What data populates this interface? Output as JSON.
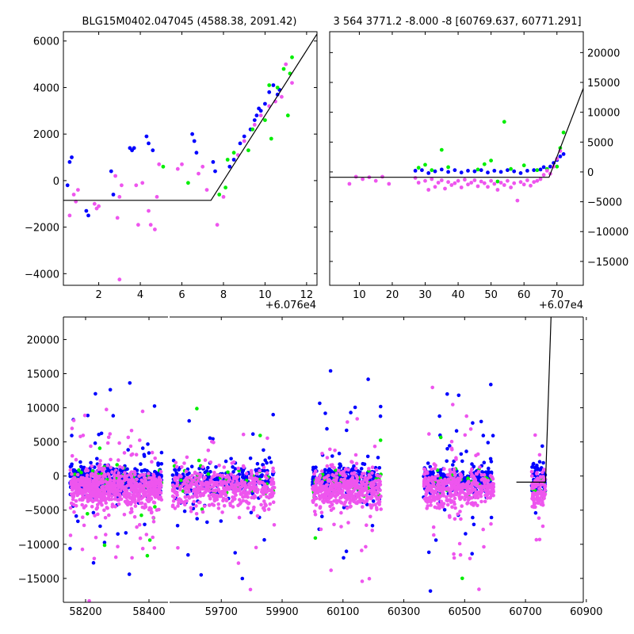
{
  "chart_data": [
    {
      "id": "zoom-left",
      "type": "scatter",
      "title": "BLG15M0402.047045 (4588.38, 2091.42)",
      "xlim": [
        0.3,
        12.5
      ],
      "ylim": [
        -4500,
        6400
      ],
      "x_offset_label": "+6.076e4",
      "xticks": [
        2,
        4,
        6,
        8,
        10,
        12
      ],
      "yticks": [
        -4000,
        -2000,
        0,
        2000,
        4000,
        6000
      ],
      "ytick_side": "left",
      "model": [
        [
          0.3,
          -850
        ],
        [
          7.4,
          -850
        ],
        [
          12.5,
          6300
        ]
      ],
      "series": [
        {
          "color": "#0000ff",
          "points": [
            [
              0.5,
              -200
            ],
            [
              0.6,
              800
            ],
            [
              0.7,
              1000
            ],
            [
              1.4,
              -1300
            ],
            [
              1.5,
              -1500
            ],
            [
              2.6,
              400
            ],
            [
              2.7,
              -600
            ],
            [
              3.5,
              1400
            ],
            [
              3.6,
              1300
            ],
            [
              3.7,
              1400
            ],
            [
              4.3,
              1900
            ],
            [
              4.4,
              1600
            ],
            [
              4.6,
              1300
            ],
            [
              6.5,
              2000
            ],
            [
              6.6,
              1700
            ],
            [
              6.7,
              1200
            ],
            [
              7.5,
              800
            ],
            [
              7.6,
              400
            ],
            [
              8.3,
              600
            ],
            [
              8.5,
              900
            ],
            [
              8.8,
              1600
            ],
            [
              9.0,
              1900
            ],
            [
              9.3,
              2200
            ],
            [
              9.5,
              2600
            ],
            [
              9.6,
              2800
            ],
            [
              9.7,
              3100
            ],
            [
              9.8,
              3000
            ],
            [
              10.0,
              3300
            ],
            [
              10.2,
              3800
            ],
            [
              10.4,
              4100
            ],
            [
              10.6,
              3700
            ],
            [
              10.7,
              3900
            ]
          ]
        },
        {
          "color": "#00ee00",
          "points": [
            [
              5.1,
              600
            ],
            [
              6.3,
              -100
            ],
            [
              7.8,
              -600
            ],
            [
              8.1,
              -300
            ],
            [
              8.2,
              900
            ],
            [
              8.5,
              1200
            ],
            [
              9.2,
              1300
            ],
            [
              9.4,
              2200
            ],
            [
              10.0,
              2600
            ],
            [
              10.3,
              1800
            ],
            [
              10.2,
              4100
            ],
            [
              10.6,
              4000
            ],
            [
              10.9,
              4800
            ],
            [
              11.1,
              2800
            ],
            [
              11.2,
              4600
            ],
            [
              11.3,
              5300
            ]
          ]
        },
        {
          "color": "#ee55ee",
          "points": [
            [
              0.6,
              -1500
            ],
            [
              0.8,
              -600
            ],
            [
              0.9,
              -900
            ],
            [
              1.0,
              -400
            ],
            [
              1.8,
              -1000
            ],
            [
              1.9,
              -1200
            ],
            [
              2.0,
              -1100
            ],
            [
              2.9,
              -1600
            ],
            [
              3.0,
              -700
            ],
            [
              3.1,
              -200
            ],
            [
              3.0,
              -4250
            ],
            [
              2.8,
              200
            ],
            [
              3.8,
              -200
            ],
            [
              3.9,
              -1900
            ],
            [
              4.1,
              -100
            ],
            [
              4.4,
              -1300
            ],
            [
              4.5,
              -1900
            ],
            [
              4.7,
              -2100
            ],
            [
              4.8,
              -700
            ],
            [
              4.9,
              700
            ],
            [
              5.8,
              500
            ],
            [
              6.0,
              700
            ],
            [
              6.8,
              300
            ],
            [
              7.0,
              600
            ],
            [
              7.2,
              -400
            ],
            [
              7.7,
              -1900
            ],
            [
              8.0,
              -700
            ],
            [
              8.7,
              1100
            ],
            [
              9.0,
              1700
            ],
            [
              9.5,
              2400
            ],
            [
              9.8,
              2800
            ],
            [
              10.2,
              3200
            ],
            [
              10.5,
              3400
            ],
            [
              10.8,
              3600
            ],
            [
              11.0,
              5000
            ],
            [
              11.3,
              4200
            ]
          ]
        }
      ]
    },
    {
      "id": "zoom-right",
      "type": "scatter",
      "title": "3 564 3771.2 -8.000 -8 [60769.637, 60771.291]",
      "xlim": [
        1,
        78
      ],
      "ylim": [
        -19000,
        23500
      ],
      "x_offset_label": "+6.07e4",
      "xticks": [
        10,
        20,
        30,
        40,
        50,
        60,
        70
      ],
      "yticks": [
        -15000,
        -10000,
        -5000,
        0,
        5000,
        10000,
        15000,
        20000
      ],
      "ytick_side": "right",
      "model": [
        [
          1,
          -900
        ],
        [
          67.6,
          -900
        ],
        [
          78,
          14000
        ]
      ],
      "series": [
        {
          "color": "#0000ff",
          "points": [
            [
              27,
              200
            ],
            [
              29,
              300
            ],
            [
              31,
              -200
            ],
            [
              33,
              100
            ],
            [
              35,
              400
            ],
            [
              37,
              0
            ],
            [
              39,
              300
            ],
            [
              41,
              -100
            ],
            [
              43,
              200
            ],
            [
              45,
              100
            ],
            [
              47,
              300
            ],
            [
              49,
              -100
            ],
            [
              51,
              200
            ],
            [
              53,
              0
            ],
            [
              55,
              300
            ],
            [
              57,
              100
            ],
            [
              59,
              -200
            ],
            [
              61,
              200
            ],
            [
              63,
              300
            ],
            [
              65,
              400
            ],
            [
              66,
              800
            ],
            [
              68,
              900
            ],
            [
              69,
              1500
            ],
            [
              70,
              2000
            ],
            [
              71,
              2600
            ],
            [
              72,
              3000
            ]
          ]
        },
        {
          "color": "#00ee00",
          "points": [
            [
              28,
              700
            ],
            [
              30,
              1200
            ],
            [
              32,
              300
            ],
            [
              35,
              3700
            ],
            [
              37,
              800
            ],
            [
              46,
              400
            ],
            [
              48,
              1300
            ],
            [
              50,
              1900
            ],
            [
              52,
              -1600
            ],
            [
              54,
              8400
            ],
            [
              56,
              500
            ],
            [
              60,
              1100
            ],
            [
              64,
              300
            ],
            [
              67,
              500
            ],
            [
              70,
              900
            ],
            [
              71,
              4000
            ],
            [
              72,
              6600
            ]
          ]
        },
        {
          "color": "#ee55ee",
          "points": [
            [
              7,
              -2000
            ],
            [
              9,
              -800
            ],
            [
              11,
              -1200
            ],
            [
              13,
              -900
            ],
            [
              15,
              -1500
            ],
            [
              17,
              -800
            ],
            [
              19,
              -2000
            ],
            [
              27,
              -1000
            ],
            [
              28,
              -1800
            ],
            [
              30,
              -1500
            ],
            [
              31,
              -3000
            ],
            [
              32,
              -1200
            ],
            [
              33,
              -2500
            ],
            [
              34,
              -1800
            ],
            [
              35,
              -1400
            ],
            [
              36,
              -2800
            ],
            [
              37,
              -1700
            ],
            [
              38,
              -2200
            ],
            [
              39,
              -1900
            ],
            [
              40,
              -1500
            ],
            [
              41,
              -2600
            ],
            [
              42,
              -1300
            ],
            [
              43,
              -2100
            ],
            [
              44,
              -1800
            ],
            [
              45,
              -1400
            ],
            [
              46,
              -2400
            ],
            [
              47,
              -1600
            ],
            [
              48,
              -1900
            ],
            [
              49,
              -2500
            ],
            [
              50,
              -1500
            ],
            [
              51,
              -2000
            ],
            [
              52,
              -3000
            ],
            [
              53,
              -1800
            ],
            [
              54,
              -2200
            ],
            [
              55,
              -1500
            ],
            [
              56,
              -2600
            ],
            [
              57,
              -1900
            ],
            [
              58,
              -4800
            ],
            [
              59,
              -1700
            ],
            [
              60,
              -2100
            ],
            [
              61,
              -1400
            ],
            [
              62,
              -2300
            ],
            [
              63,
              -1700
            ],
            [
              64,
              -1500
            ],
            [
              65,
              -1200
            ],
            [
              66,
              -500
            ],
            [
              67,
              200
            ],
            [
              68,
              -300
            ],
            [
              69,
              900
            ],
            [
              70,
              2200
            ],
            [
              71,
              3500
            ]
          ]
        }
      ]
    },
    {
      "id": "full-lightcurve",
      "type": "scatter",
      "title": "",
      "ylim": [
        -18500,
        23300
      ],
      "yticks": [
        -15000,
        -10000,
        -5000,
        0,
        5000,
        10000,
        15000,
        20000
      ],
      "ytick_side": "left",
      "segments": [
        {
          "id": "seg-1",
          "xlim": [
            58130,
            58460
          ],
          "xticks": [
            58200,
            58400
          ],
          "clusters": [
            [
              58150,
              58300,
              1.0
            ],
            [
              58300,
              58440,
              0.8
            ]
          ]
        },
        {
          "id": "seg-2",
          "xlim": [
            59530,
            60890
          ],
          "xticks": [
            59700,
            59900,
            60100,
            60300,
            60500,
            60700,
            60900
          ],
          "clusters": [
            [
              59540,
              59875,
              1.0
            ],
            [
              60000,
              60225,
              1.0
            ],
            [
              60365,
              60595,
              1.0
            ],
            [
              60720,
              60765,
              0.25
            ]
          ]
        }
      ],
      "model": [
        [
          60670,
          -900
        ],
        [
          60766,
          -900
        ],
        [
          60784,
          23300
        ]
      ],
      "series": [
        {
          "color": "#0000ff",
          "name": ""
        },
        {
          "color": "#00ee00",
          "name": ""
        },
        {
          "color": "#ee55ee",
          "name": ""
        }
      ]
    }
  ]
}
